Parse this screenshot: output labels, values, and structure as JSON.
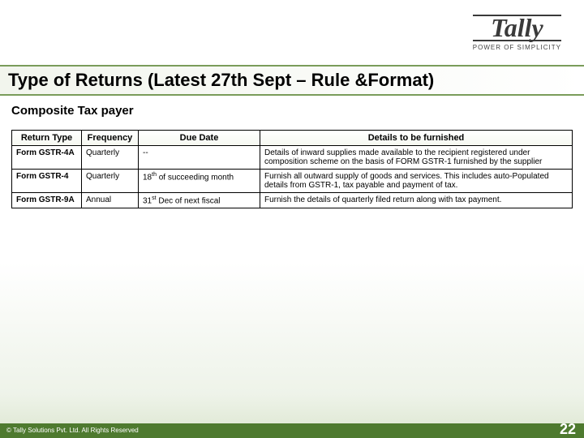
{
  "logo": {
    "brand": "Tally",
    "tagline": "POWER OF SIMPLICITY"
  },
  "title": "Type of Returns (Latest 27th Sept – Rule &Format)",
  "subtitle": "Composite Tax payer",
  "table": {
    "columns": [
      "Return Type",
      "Frequency",
      "Due Date",
      "Details to be furnished"
    ],
    "rows": [
      {
        "return_type": "Form GSTR-4A",
        "frequency": "Quarterly",
        "due_date": "--",
        "details": "Details of inward supplies made available to the recipient registered under composition scheme on the basis of FORM GSTR-1 furnished by the supplier"
      },
      {
        "return_type": "Form GSTR-4",
        "frequency": "Quarterly",
        "due_date_html": "18<sup>th</sup> of succeeding month",
        "details": "Furnish all outward supply of goods and services. This includes auto-Populated details from GSTR-1, tax payable and payment of tax."
      },
      {
        "return_type": "Form GSTR-9A",
        "frequency": "Annual",
        "due_date_html": "31<sup>st</sup> Dec of next fiscal",
        "details": "Furnish the details of quarterly filed return along with tax payment."
      }
    ]
  },
  "footer": {
    "copyright": "© Tally Solutions Pvt. Ltd. All Rights Reserved",
    "page": "22"
  },
  "colors": {
    "footer_bg": "#4e7a2f",
    "border": "#7a9c5a"
  }
}
